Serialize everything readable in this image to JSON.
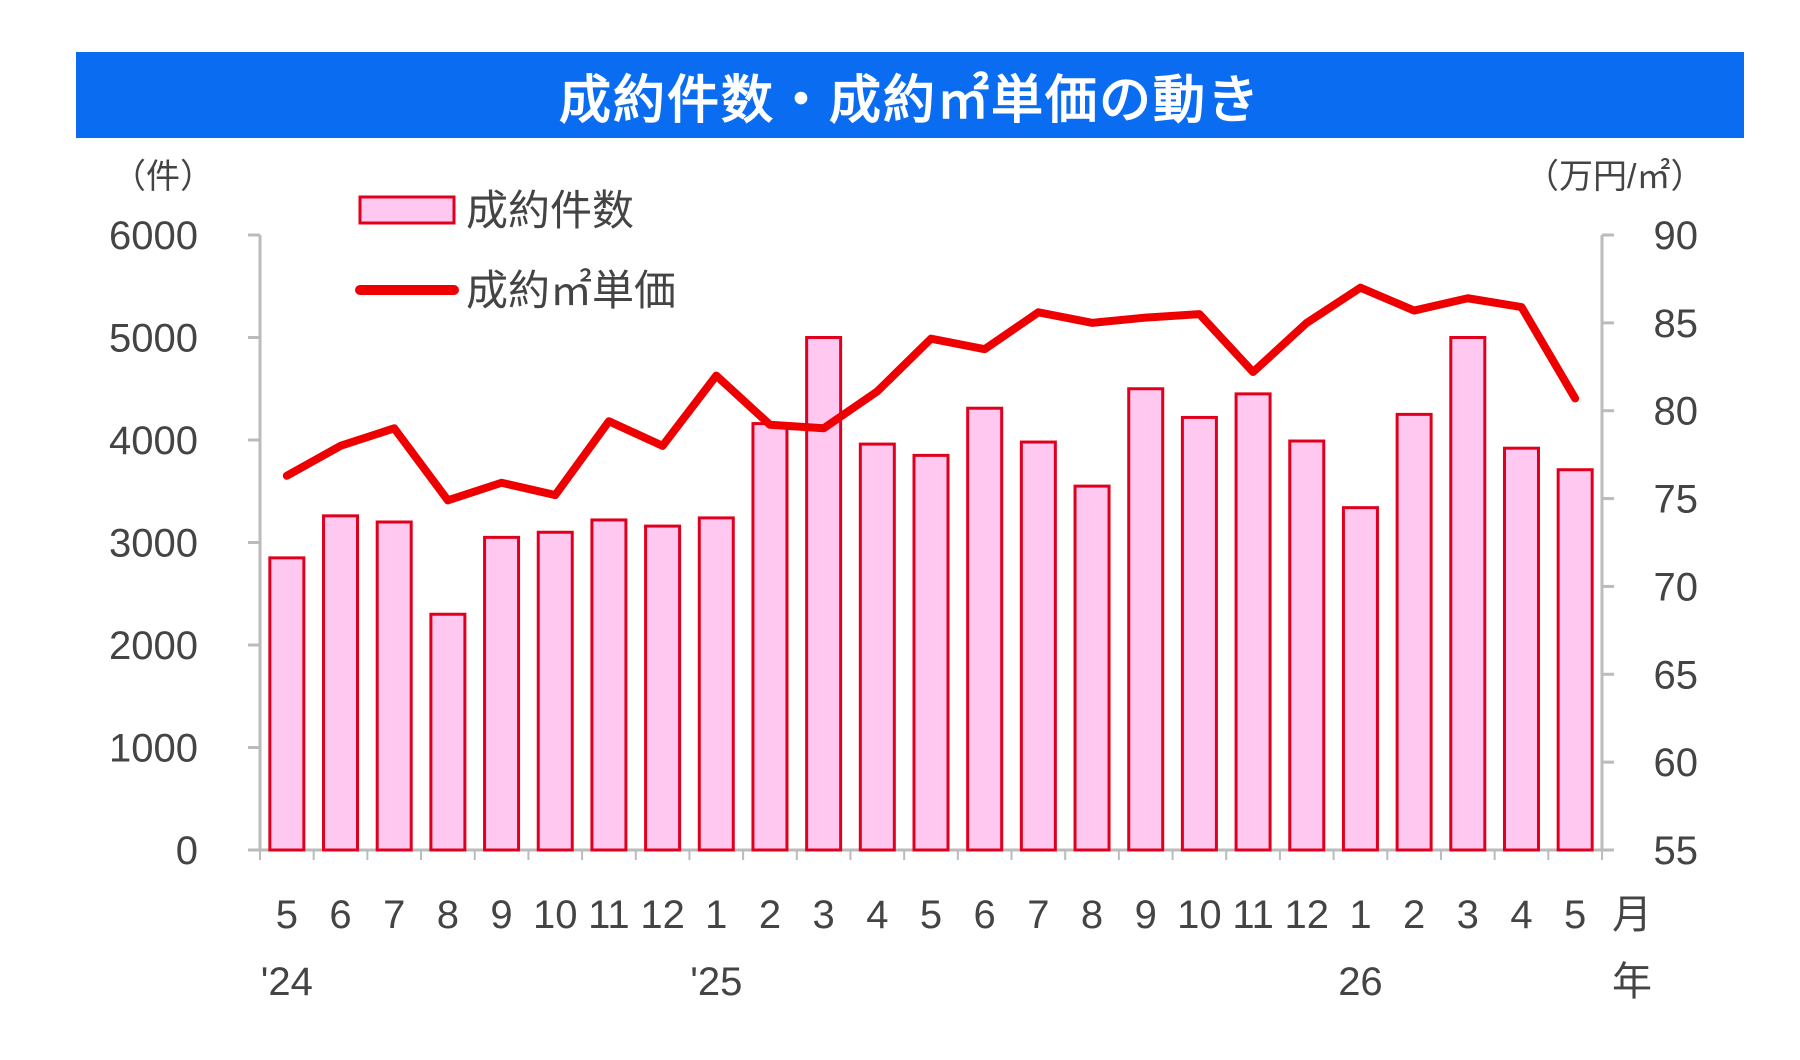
{
  "title": "成約件数・成約㎡単価の動き",
  "colors": {
    "title_bg": "#0a6cf0",
    "bar_fill": "#ffc8f0",
    "bar_stroke": "#e0001e",
    "line": "#ee0000",
    "axis": "#bbbbbb"
  },
  "chart_data": {
    "type": "bar+line",
    "categories": [
      "5",
      "6",
      "7",
      "8",
      "9",
      "10",
      "11",
      "12",
      "1",
      "2",
      "3",
      "4",
      "5",
      "6",
      "7",
      "8",
      "9",
      "10",
      "11",
      "12",
      "1",
      "2",
      "3",
      "4",
      "5"
    ],
    "series": [
      {
        "name": "成約件数",
        "type": "bar",
        "axis": "left",
        "values": [
          2850,
          3260,
          3200,
          2300,
          3050,
          3100,
          3220,
          3160,
          3240,
          4160,
          5000,
          3960,
          3850,
          4310,
          3980,
          3550,
          4500,
          4220,
          4450,
          3990,
          3340,
          4250,
          5000,
          3920,
          3710
        ]
      },
      {
        "name": "成約㎡単価",
        "type": "line",
        "axis": "right",
        "values": [
          76.3,
          78.0,
          79.0,
          74.9,
          75.9,
          75.2,
          79.4,
          78.0,
          82.0,
          79.2,
          79.0,
          81.1,
          84.1,
          83.5,
          85.6,
          85.0,
          85.3,
          85.5,
          82.2,
          85.0,
          87.0,
          85.7,
          86.4,
          85.9,
          80.7
        ]
      }
    ],
    "y_left": {
      "label": "（件）",
      "ylim": [
        0,
        6000
      ],
      "ticks": [
        "0",
        "1000",
        "2000",
        "3000",
        "4000",
        "5000",
        "6000"
      ]
    },
    "y_right": {
      "label": "（万円/㎡）",
      "ylim": [
        55,
        90
      ],
      "ticks": [
        "55",
        "60",
        "65",
        "70",
        "75",
        "80",
        "85",
        "90"
      ]
    },
    "x_month_label": "月",
    "x_year_label": "年",
    "year_labels": [
      {
        "index": 0,
        "text": "'24"
      },
      {
        "index": 8,
        "text": "'25"
      },
      {
        "index": 20,
        "text": "26"
      }
    ],
    "legend": [
      {
        "text": "成約件数",
        "kind": "bar"
      },
      {
        "text": "成約㎡単価",
        "kind": "line"
      }
    ],
    "legend_position": "top-left",
    "grid": false
  }
}
